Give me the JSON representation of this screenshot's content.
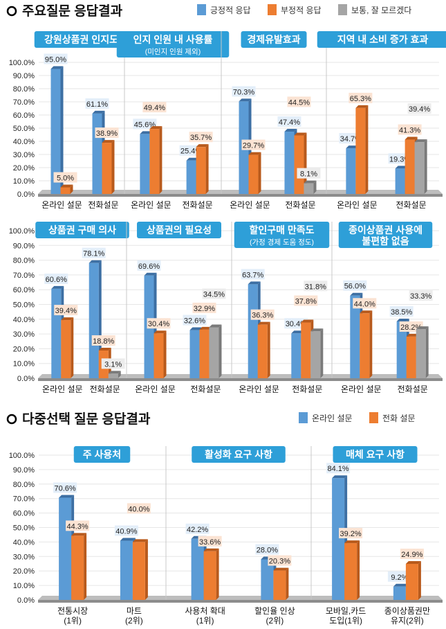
{
  "section1": {
    "heading": "주요질문 응답결과",
    "legend": [
      {
        "label": "긍정적 응답",
        "color": "#5b9bd5"
      },
      {
        "label": "부정적 응답",
        "color": "#ed7d31"
      },
      {
        "label": "보통, 잘 모르겠다",
        "color": "#a5a5a5"
      }
    ]
  },
  "section2": {
    "heading": "다중선택 질문 응답결과",
    "legend": [
      {
        "label": "온라인 설문",
        "color": "#5b9bd5"
      },
      {
        "label": "전화 설문",
        "color": "#ed7d31"
      }
    ]
  },
  "yticks": [
    "0.0%",
    "10.0%",
    "20.0%",
    "30.0%",
    "40.0%",
    "50.0%",
    "60.0%",
    "70.0%",
    "80.0%",
    "90.0%",
    "100.0%"
  ],
  "chart_data": [
    {
      "type": "bar",
      "title": "강원상품권 인지도",
      "categories": [
        "온라인 설문",
        "전화설문"
      ],
      "ylim": [
        0,
        100
      ],
      "series": [
        {
          "name": "긍정적 응답",
          "values": [
            95.0,
            61.1
          ]
        },
        {
          "name": "부정적 응답",
          "values": [
            5.0,
            38.9
          ]
        },
        {
          "name": "보통, 잘 모르겠다",
          "values": [
            null,
            null
          ]
        }
      ]
    },
    {
      "type": "bar",
      "title": "인지 인원 내 사용률",
      "subtitle": "(미인지 인원 제외)",
      "categories": [
        "온라인 설문",
        "전화설문"
      ],
      "ylim": [
        0,
        100
      ],
      "series": [
        {
          "name": "긍정적 응답",
          "values": [
            45.6,
            25.4
          ]
        },
        {
          "name": "부정적 응답",
          "values": [
            49.4,
            35.7
          ]
        },
        {
          "name": "보통, 잘 모르겠다",
          "values": [
            null,
            null
          ]
        }
      ]
    },
    {
      "type": "bar",
      "title": "경제유발효과",
      "categories": [
        "온라인 설문",
        "전화설문"
      ],
      "ylim": [
        0,
        100
      ],
      "series": [
        {
          "name": "긍정적 응답",
          "values": [
            70.3,
            47.4
          ]
        },
        {
          "name": "부정적 응답",
          "values": [
            29.7,
            44.5
          ]
        },
        {
          "name": "보통, 잘 모르겠다",
          "values": [
            null,
            8.1
          ]
        }
      ]
    },
    {
      "type": "bar",
      "title": "지역 내 소비 증가 효과",
      "categories": [
        "온라인 설문",
        "전화설문"
      ],
      "ylim": [
        0,
        100
      ],
      "series": [
        {
          "name": "긍정적 응답",
          "values": [
            34.7,
            19.3
          ]
        },
        {
          "name": "부정적 응답",
          "values": [
            65.3,
            41.3
          ]
        },
        {
          "name": "보통, 잘 모르겠다",
          "values": [
            null,
            39.4
          ]
        }
      ]
    },
    {
      "type": "bar",
      "title": "상품권 구매 의사",
      "categories": [
        "온라인 설문",
        "전화설문"
      ],
      "ylim": [
        0,
        100
      ],
      "series": [
        {
          "name": "긍정적 응답",
          "values": [
            60.6,
            78.1
          ]
        },
        {
          "name": "부정적 응답",
          "values": [
            39.4,
            18.8
          ]
        },
        {
          "name": "보통, 잘 모르겠다",
          "values": [
            null,
            3.1
          ]
        }
      ]
    },
    {
      "type": "bar",
      "title": "상품권의 필요성",
      "categories": [
        "온라인 설문",
        "전화설문"
      ],
      "ylim": [
        0,
        100
      ],
      "series": [
        {
          "name": "긍정적 응답",
          "values": [
            69.6,
            32.6
          ]
        },
        {
          "name": "부정적 응답",
          "values": [
            30.4,
            32.9
          ]
        },
        {
          "name": "보통, 잘 모르겠다",
          "values": [
            null,
            34.5
          ]
        }
      ]
    },
    {
      "type": "bar",
      "title": "할인구매 만족도",
      "subtitle": "(가정 경제 도움 정도)",
      "categories": [
        "온라인 설문",
        "전화설문"
      ],
      "ylim": [
        0,
        100
      ],
      "series": [
        {
          "name": "긍정적 응답",
          "values": [
            63.7,
            30.4
          ]
        },
        {
          "name": "부정적 응답",
          "values": [
            36.3,
            37.8
          ]
        },
        {
          "name": "보통, 잘 모르겠다",
          "values": [
            null,
            31.8
          ]
        }
      ]
    },
    {
      "type": "bar",
      "title": "종이상품권 사용에",
      "subtitle": "불편함 없음",
      "categories": [
        "온라인 설문",
        "전화설문"
      ],
      "ylim": [
        0,
        100
      ],
      "series": [
        {
          "name": "긍정적 응답",
          "values": [
            56.0,
            38.5
          ]
        },
        {
          "name": "부정적 응답",
          "values": [
            44.0,
            28.2
          ]
        },
        {
          "name": "보통, 잘 모르겠다",
          "values": [
            null,
            33.3
          ]
        }
      ]
    },
    {
      "type": "bar",
      "title": "주 사용처",
      "categories": [
        "전통시장\n(1위)",
        "마트\n(2위)"
      ],
      "ylim": [
        0,
        100
      ],
      "series": [
        {
          "name": "온라인 설문",
          "values": [
            70.6,
            40.9
          ]
        },
        {
          "name": "전화 설문",
          "values": [
            44.3,
            40.0
          ]
        }
      ]
    },
    {
      "type": "bar",
      "title": "활성화 요구 사항",
      "categories": [
        "사용처 확대\n(1위)",
        "할인율 인상\n(2위)"
      ],
      "ylim": [
        0,
        100
      ],
      "series": [
        {
          "name": "온라인 설문",
          "values": [
            42.2,
            28.0
          ]
        },
        {
          "name": "전화 설문",
          "values": [
            33.6,
            20.3
          ]
        }
      ]
    },
    {
      "type": "bar",
      "title": "매체 요구 사항",
      "categories": [
        "모바일,카드\n도입(1위)",
        "종이상품권만\n유지(2위)"
      ],
      "ylim": [
        0,
        100
      ],
      "series": [
        {
          "name": "온라인 설문",
          "values": [
            84.1,
            9.2
          ]
        },
        {
          "name": "전화 설문",
          "values": [
            39.2,
            24.9
          ]
        }
      ]
    }
  ]
}
